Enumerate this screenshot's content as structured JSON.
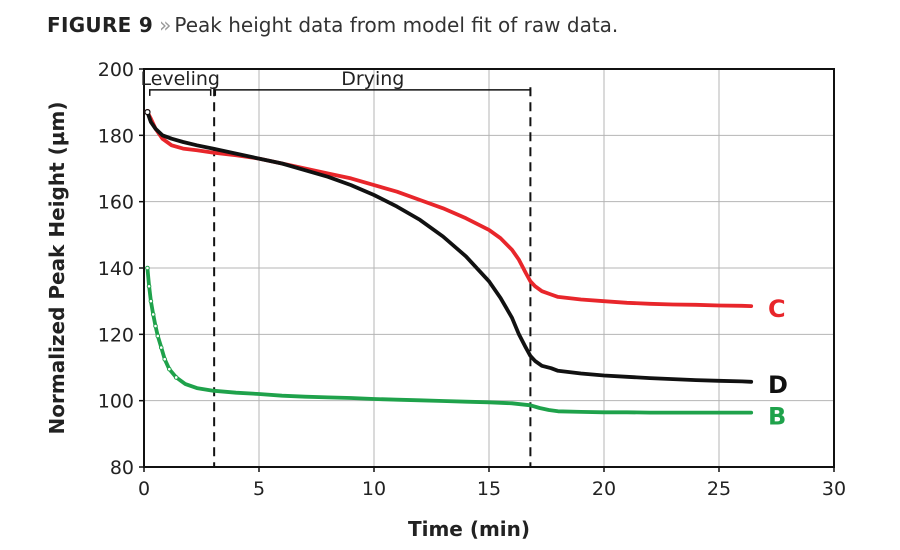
{
  "caption": {
    "label": "FIGURE 9",
    "separator": "»",
    "text": "Peak height data from model fit of raw data."
  },
  "chart_data": {
    "type": "line",
    "title": "Peak height data from model fit of raw data.",
    "xlabel": "Time (min)",
    "ylabel": "Normalized Peak Height (µm)",
    "xlim": [
      0,
      30
    ],
    "ylim": [
      80,
      200
    ],
    "x_ticks": [
      0,
      5,
      10,
      15,
      20,
      25,
      30
    ],
    "y_ticks": [
      80,
      100,
      120,
      140,
      160,
      180,
      200
    ],
    "grid": true,
    "phases": [
      {
        "name": "Leveling",
        "start": 0.25,
        "end": 2.9
      },
      {
        "name": "Drying",
        "start": 3.1,
        "end": 16.8
      }
    ],
    "phase_boundaries": [
      3.05,
      16.8
    ],
    "series": [
      {
        "name": "C",
        "color": "#e8262b",
        "x": [
          0.15,
          0.3,
          0.5,
          0.8,
          1.2,
          1.7,
          2.3,
          3.0,
          4.0,
          5.0,
          6.0,
          7.0,
          8.0,
          9.0,
          10.0,
          11.0,
          12.0,
          13.0,
          14.0,
          15.0,
          15.5,
          16.0,
          16.3,
          16.6,
          16.8,
          17.0,
          17.3,
          17.7,
          18.0,
          19.0,
          20.0,
          21.0,
          22.0,
          23.0,
          24.0,
          25.0,
          26.0,
          26.4
        ],
        "values": [
          187,
          185,
          182,
          179,
          177,
          176,
          175.5,
          174.8,
          174,
          173,
          171.5,
          170,
          168.5,
          167,
          165,
          163,
          160.5,
          158,
          155,
          151.5,
          149,
          145.5,
          142.5,
          138.5,
          136,
          134.5,
          133,
          132,
          131.3,
          130.5,
          130,
          129.5,
          129.2,
          129,
          128.9,
          128.7,
          128.6,
          128.5
        ]
      },
      {
        "name": "D",
        "color": "#111111",
        "x": [
          0.15,
          0.3,
          0.5,
          0.8,
          1.2,
          1.7,
          2.3,
          3.0,
          4.0,
          5.0,
          6.0,
          7.0,
          8.0,
          9.0,
          10.0,
          11.0,
          12.0,
          13.0,
          14.0,
          15.0,
          15.5,
          16.0,
          16.3,
          16.6,
          16.8,
          17.0,
          17.3,
          17.7,
          18.0,
          19.0,
          20.0,
          21.0,
          22.0,
          23.0,
          24.0,
          25.0,
          26.0,
          26.4
        ],
        "values": [
          187,
          184,
          182,
          180,
          179,
          178,
          177,
          176,
          174.5,
          173,
          171.5,
          169.5,
          167.5,
          165,
          162,
          158.5,
          154.5,
          149.5,
          143.5,
          136,
          131,
          125,
          120,
          116,
          113.5,
          112,
          110.5,
          109.8,
          109,
          108.2,
          107.6,
          107.2,
          106.8,
          106.5,
          106.2,
          106,
          105.8,
          105.7
        ]
      },
      {
        "name": "B",
        "color": "#1fa24b",
        "x": [
          0.15,
          0.22,
          0.3,
          0.4,
          0.5,
          0.6,
          0.75,
          0.9,
          1.1,
          1.4,
          1.8,
          2.3,
          3.0,
          4.0,
          5.0,
          6.0,
          7.0,
          8.0,
          9.0,
          10.0,
          11.0,
          12.0,
          13.0,
          14.0,
          15.0,
          16.0,
          16.8,
          17.2,
          17.6,
          18.0,
          19.0,
          20.0,
          21.0,
          22.0,
          23.0,
          24.0,
          25.0,
          26.0,
          26.4
        ],
        "values": [
          140,
          134.5,
          130,
          126,
          122.5,
          119.5,
          116,
          112.5,
          109.5,
          107,
          105,
          103.8,
          103,
          102.4,
          102,
          101.5,
          101.2,
          101,
          100.8,
          100.5,
          100.3,
          100.1,
          99.9,
          99.7,
          99.5,
          99.2,
          98.6,
          97.8,
          97.2,
          96.8,
          96.6,
          96.5,
          96.5,
          96.4,
          96.4,
          96.4,
          96.4,
          96.4,
          96.4
        ]
      }
    ]
  }
}
